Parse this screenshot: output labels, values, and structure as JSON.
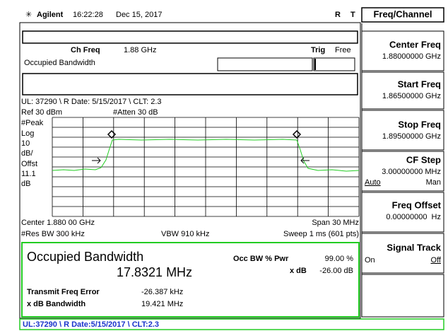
{
  "header": {
    "brand": "Agilent",
    "time": "16:22:28",
    "date": "Dec 15, 2017",
    "flags": [
      "R",
      "T"
    ]
  },
  "menu_title": "Freq/Channel",
  "measurement": {
    "ch_freq_label": "Ch Freq",
    "ch_freq": "1.88 GHz",
    "trig_label": "Trig",
    "trig": "Free",
    "name": "Occupied Bandwidth",
    "info": "UL: 37290 \\ R Date: 5/15/2017 \\ CLT: 2.3",
    "ref": "Ref 30 dBm",
    "atten": "#Atten 30 dB"
  },
  "scale_labels": [
    "#Peak",
    "Log",
    "10",
    "dB/",
    "Offst",
    "11.1",
    "dB"
  ],
  "graph_footer": {
    "center": "Center 1.880 00 GHz",
    "span": "Span 30 MHz",
    "res_bw": "#Res BW 300 kHz",
    "vbw": "VBW 910 kHz",
    "sweep": "Sweep 1 ms (601 pts)"
  },
  "results": {
    "title": "Occupied Bandwidth",
    "value": "17.8321 MHz",
    "pwr_label": "Occ BW % Pwr",
    "pwr": "99.00 %",
    "xdb_label": "x dB",
    "xdb": "-26.00 dB",
    "tfe_label": "Transmit Freq Error",
    "tfe": "-26.387 kHz",
    "xdbbw_label": "x dB Bandwidth",
    "xdbbw": "19.421 MHz"
  },
  "status": "UL:37290 \\ R Date:5/15/2017 \\ CLT:2.3",
  "softkeys": [
    {
      "label": "Center Freq",
      "value": "1.88000000 GHz"
    },
    {
      "label": "Start Freq",
      "value": "1.86500000 GHz"
    },
    {
      "label": "Stop Freq",
      "value": "1.89500000 GHz"
    },
    {
      "label": "CF Step",
      "value": "3.00000000 MHz",
      "options": [
        "Auto",
        "Man"
      ]
    },
    {
      "label": "Freq Offset",
      "value": "0.00000000  Hz"
    },
    {
      "label": "Signal Track",
      "options": [
        "On",
        "Off"
      ]
    }
  ]
}
